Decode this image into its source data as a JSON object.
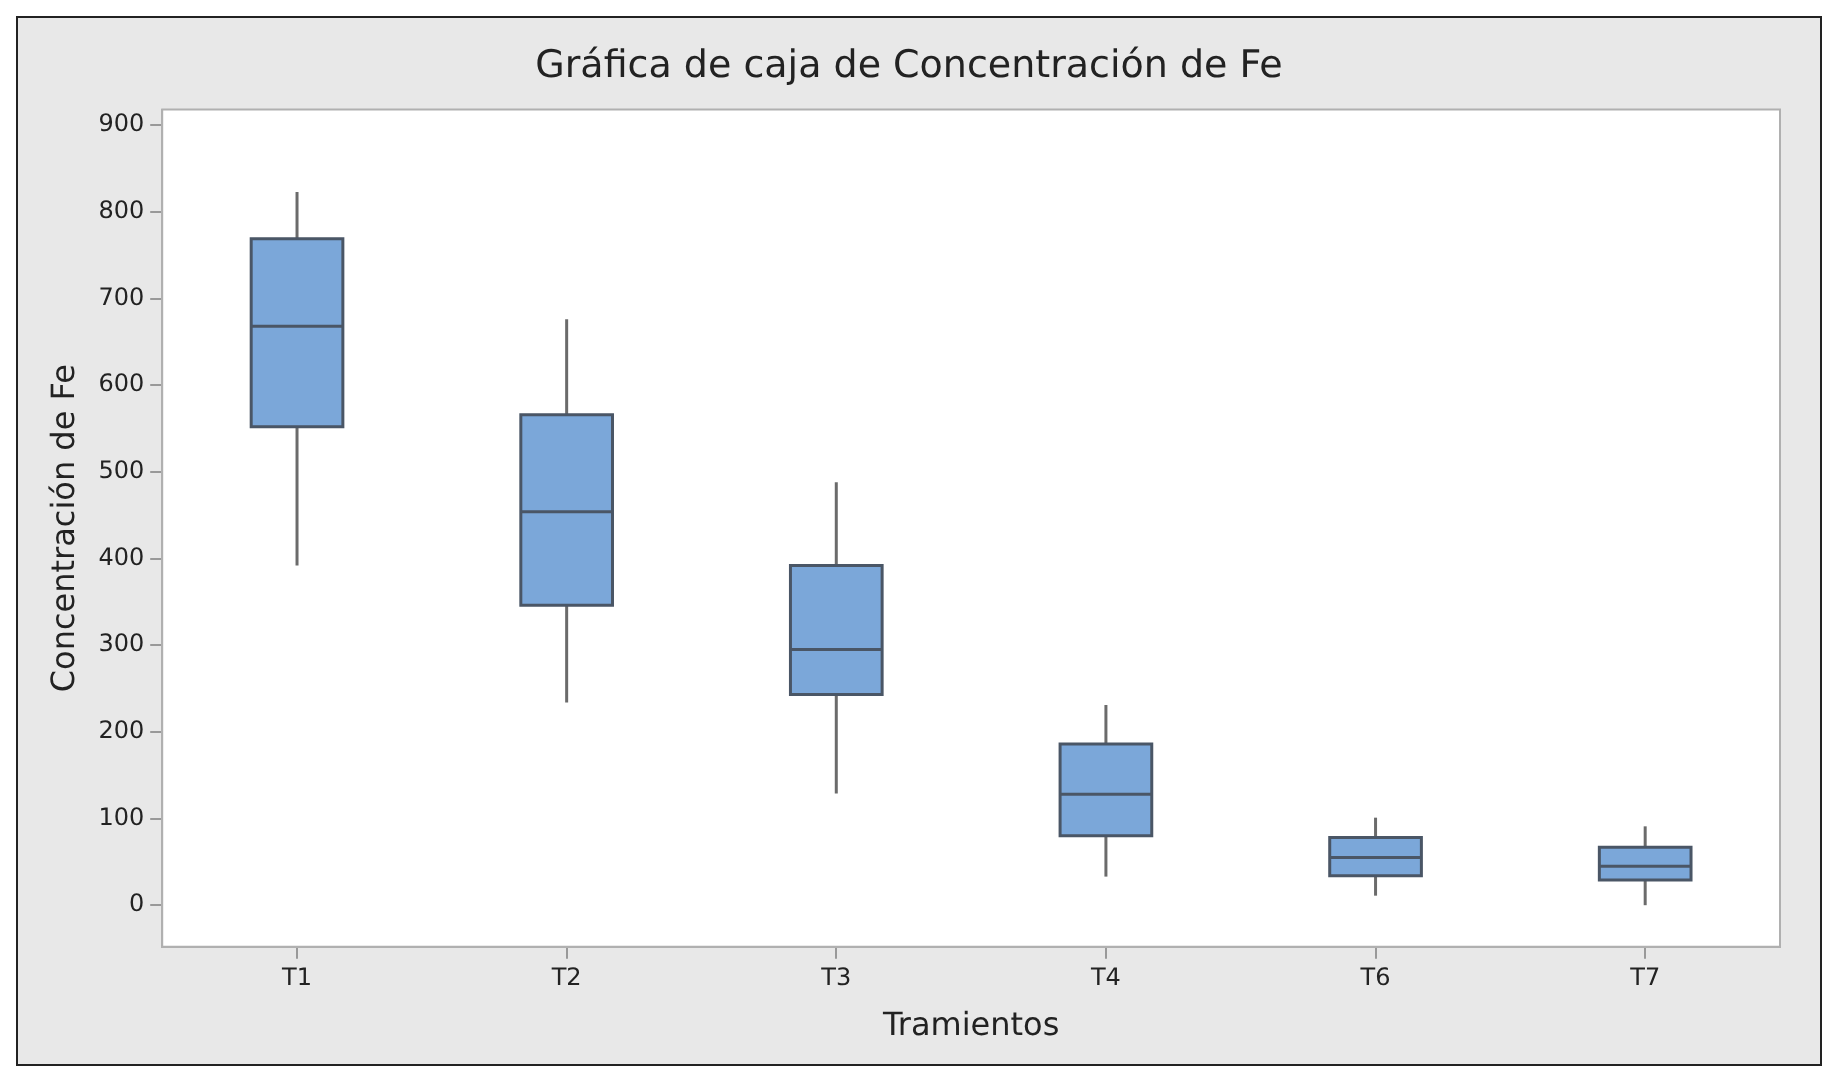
{
  "chart_data": {
    "type": "box",
    "title": "Gráfica de caja de Concentración de Fe",
    "xlabel": "Tramientos",
    "ylabel": "Concentración de Fe",
    "categories": [
      "T1",
      "T2",
      "T3",
      "T4",
      "T6",
      "T7"
    ],
    "series": [
      {
        "color": "#7ba7d9",
        "boxes": [
          {
            "low": 392,
            "q1": 552,
            "median": 668,
            "q3": 769,
            "high": 823
          },
          {
            "low": 234,
            "q1": 346,
            "median": 454,
            "q3": 566,
            "high": 676
          },
          {
            "low": 129,
            "q1": 243,
            "median": 295,
            "q3": 392,
            "high": 488
          },
          {
            "low": 33,
            "q1": 80,
            "median": 128,
            "q3": 186,
            "high": 231
          },
          {
            "low": 11,
            "q1": 34,
            "median": 55,
            "q3": 78,
            "high": 101
          },
          {
            "low": 0,
            "q1": 29,
            "median": 45,
            "q3": 67,
            "high": 91
          }
        ]
      }
    ],
    "ylim": [
      -48,
      918
    ],
    "yticks": [
      0,
      100,
      200,
      300,
      400,
      500,
      600,
      700,
      800,
      900
    ],
    "grid": false,
    "legend": false
  }
}
